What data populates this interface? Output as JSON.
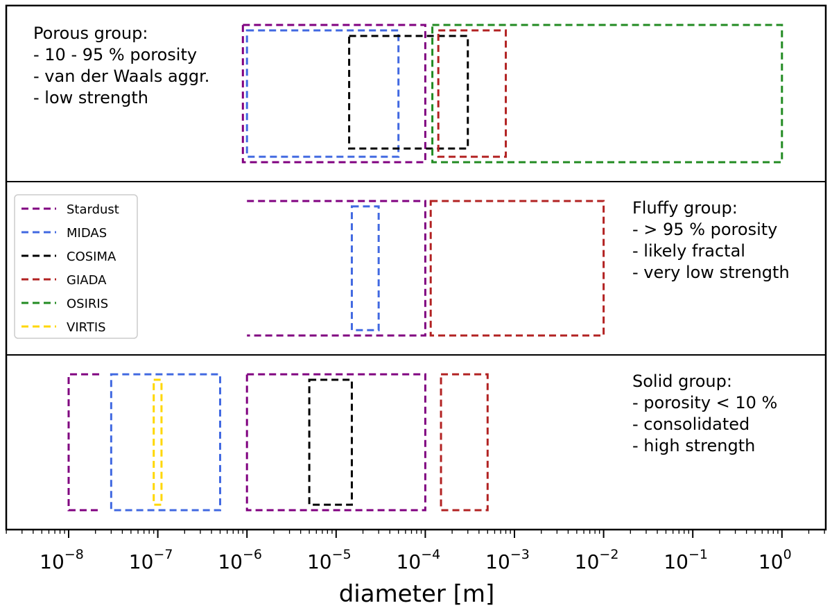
{
  "chart_data": {
    "type": "range-boxes",
    "xscale": "log",
    "xlim": [
      2e-09,
      4.0
    ],
    "xlabel": "diameter [m]",
    "xticks": [
      {
        "base": "10",
        "exp": "−8"
      },
      {
        "base": "10",
        "exp": "−7"
      },
      {
        "base": "10",
        "exp": "−6"
      },
      {
        "base": "10",
        "exp": "−5"
      },
      {
        "base": "10",
        "exp": "−4"
      },
      {
        "base": "10",
        "exp": "−3"
      },
      {
        "base": "10",
        "exp": "−2"
      },
      {
        "base": "10",
        "exp": "−1"
      },
      {
        "base": "10",
        "exp": "0"
      }
    ],
    "xtick_values": [
      1e-08,
      1e-07,
      1e-06,
      1e-05,
      0.0001,
      0.001,
      0.01,
      0.1,
      1
    ],
    "instruments": [
      {
        "name": "Stardust",
        "color": "#800080"
      },
      {
        "name": "MIDAS",
        "color": "#4169e1"
      },
      {
        "name": "COSIMA",
        "color": "#000000"
      },
      {
        "name": "GIADA",
        "color": "#b22222"
      },
      {
        "name": "OSIRIS",
        "color": "#228b22"
      },
      {
        "name": "VIRTIS",
        "color": "#ffd700"
      }
    ],
    "groups": [
      {
        "name": "porous",
        "annotation": [
          "Porous group:",
          "- 10 - 95 % porosity",
          "- van der Waals aggr.",
          "- low strength"
        ],
        "annotation_side": "left",
        "boxes": [
          {
            "instrument": "Stardust",
            "x0": 9e-07,
            "x1": 0.0001,
            "y0": 0.0,
            "y1": 1.0
          },
          {
            "instrument": "MIDAS",
            "x0": 1e-06,
            "x1": 5e-05,
            "y0": 0.04,
            "y1": 0.96
          },
          {
            "instrument": "COSIMA",
            "x0": 1.4e-05,
            "x1": 0.0003,
            "y0": 0.08,
            "y1": 0.9
          },
          {
            "instrument": "GIADA",
            "x0": 0.00014,
            "x1": 0.0008,
            "y0": 0.04,
            "y1": 0.96
          },
          {
            "instrument": "OSIRIS",
            "x0": 0.00012,
            "x1": 1.0,
            "y0": 0.0,
            "y1": 1.0
          }
        ]
      },
      {
        "name": "fluffy",
        "annotation": [
          "Fluffy group:",
          "- > 95 % porosity",
          "- likely fractal",
          "- very low strength"
        ],
        "annotation_side": "right",
        "boxes": [
          {
            "instrument": "Stardust",
            "x0": 1e-06,
            "x1": 0.0001,
            "y0": 0.0,
            "y1": 1.0,
            "open_left": true
          },
          {
            "instrument": "MIDAS",
            "x0": 1.5e-05,
            "x1": 3e-05,
            "y0": 0.04,
            "y1": 0.96
          },
          {
            "instrument": "GIADA",
            "x0": 0.000115,
            "x1": 0.01,
            "y0": 0.0,
            "y1": 1.0
          }
        ]
      },
      {
        "name": "solid",
        "annotation": [
          "Solid group:",
          "- porosity < 10 %",
          "- consolidated",
          "- high strength"
        ],
        "annotation_side": "right",
        "boxes": [
          {
            "instrument": "Stardust",
            "x0": 1e-08,
            "x1": 2.2e-08,
            "y0": 0.0,
            "y1": 1.0,
            "open_right": true
          },
          {
            "instrument": "MIDAS",
            "x0": 3e-08,
            "x1": 5e-07,
            "y0": 0.0,
            "y1": 1.0
          },
          {
            "instrument": "VIRTIS",
            "x0": 9e-08,
            "x1": 1.1e-07,
            "y0": 0.04,
            "y1": 0.96
          },
          {
            "instrument": "Stardust",
            "x0": 1e-06,
            "x1": 0.0001,
            "y0": 0.0,
            "y1": 1.0
          },
          {
            "instrument": "COSIMA",
            "x0": 5e-06,
            "x1": 1.5e-05,
            "y0": 0.04,
            "y1": 0.96
          },
          {
            "instrument": "GIADA",
            "x0": 0.00015,
            "x1": 0.0005,
            "y0": 0.0,
            "y1": 1.0
          }
        ]
      }
    ]
  }
}
